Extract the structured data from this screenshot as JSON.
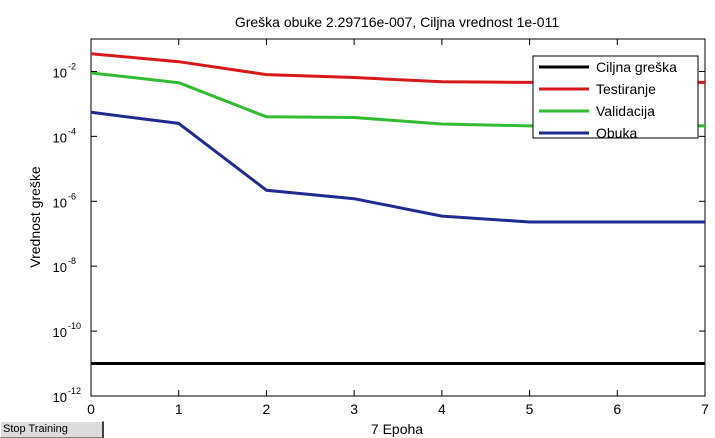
{
  "stop_button": {
    "label": "Stop Training"
  },
  "chart_data": {
    "type": "line",
    "title": "Greška obuke 2.29716e-007, Ciljna vrednost 1e-011",
    "xlabel": "7 Epoha",
    "ylabel": "Vrednost greške",
    "xlim": [
      0,
      7
    ],
    "ylim": [
      1e-12,
      0.1
    ],
    "yscale": "log",
    "x_ticks": [
      0,
      1,
      2,
      3,
      4,
      5,
      6,
      7
    ],
    "y_ticks": [
      {
        "base": "10",
        "exp": "-12",
        "value": -12
      },
      {
        "base": "10",
        "exp": "-10",
        "value": -10
      },
      {
        "base": "10",
        "exp": "-8",
        "value": -8
      },
      {
        "base": "10",
        "exp": "-6",
        "value": -6
      },
      {
        "base": "10",
        "exp": "-4",
        "value": -4
      },
      {
        "base": "10",
        "exp": "-2",
        "value": -2
      }
    ],
    "grid": false,
    "legend_position": "top-right",
    "x": [
      0,
      1,
      2,
      3,
      4,
      5,
      6,
      7
    ],
    "series": [
      {
        "name": "Ciljna greška",
        "color": "#000000",
        "values": [
          1e-11,
          1e-11,
          1e-11,
          1e-11,
          1e-11,
          1e-11,
          1e-11,
          1e-11
        ]
      },
      {
        "name": "Testiranje",
        "color": "#d7191c",
        "values": [
          0.035,
          0.02,
          0.008,
          0.0065,
          0.0048,
          0.0046,
          0.0046,
          0.0046
        ]
      },
      {
        "name": "Validacija",
        "color": "#33bb33",
        "values": [
          0.009,
          0.0045,
          0.0004,
          0.00038,
          0.00024,
          0.00021,
          0.00021,
          0.00021
        ]
      },
      {
        "name": "Obuka",
        "color": "#1f2b8f",
        "values": [
          0.00055,
          0.00025,
          2.2e-06,
          1.2e-06,
          3.5e-07,
          2.3e-07,
          2.3e-07,
          2.3e-07
        ]
      }
    ]
  }
}
